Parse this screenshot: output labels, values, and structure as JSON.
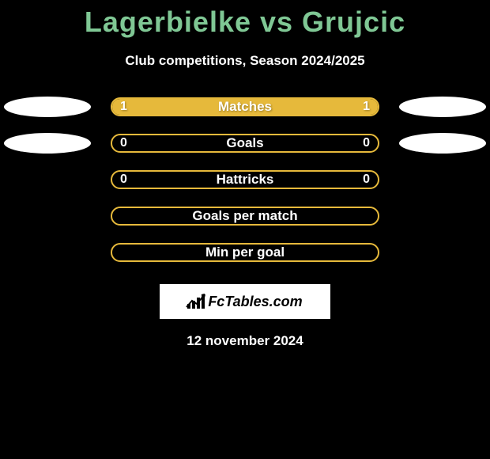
{
  "title": "Lagerbielke vs Grujcic",
  "subtitle": "Club competitions, Season 2024/2025",
  "colors": {
    "title": "#7fc794",
    "bar_border": "#e6b93b",
    "bar_fill": "#e6b93b",
    "background": "#000000",
    "text_light": "#ffffff",
    "footer_bg": "#ffffff"
  },
  "stats": [
    {
      "label": "Matches",
      "left_value": "1",
      "right_value": "1",
      "left_fill_pct": 50,
      "right_fill_pct": 50,
      "show_left_ellipse": true,
      "show_right_ellipse": true,
      "show_values": true
    },
    {
      "label": "Goals",
      "left_value": "0",
      "right_value": "0",
      "left_fill_pct": 0,
      "right_fill_pct": 0,
      "show_left_ellipse": true,
      "show_right_ellipse": true,
      "show_values": true
    },
    {
      "label": "Hattricks",
      "left_value": "0",
      "right_value": "0",
      "left_fill_pct": 0,
      "right_fill_pct": 0,
      "show_left_ellipse": false,
      "show_right_ellipse": false,
      "show_values": true
    },
    {
      "label": "Goals per match",
      "left_value": "",
      "right_value": "",
      "left_fill_pct": 0,
      "right_fill_pct": 0,
      "show_left_ellipse": false,
      "show_right_ellipse": false,
      "show_values": false
    },
    {
      "label": "Min per goal",
      "left_value": "",
      "right_value": "",
      "left_fill_pct": 0,
      "right_fill_pct": 0,
      "show_left_ellipse": false,
      "show_right_ellipse": false,
      "show_values": false
    }
  ],
  "footer": {
    "brand": "FcTables.com"
  },
  "date": "12 november 2024"
}
